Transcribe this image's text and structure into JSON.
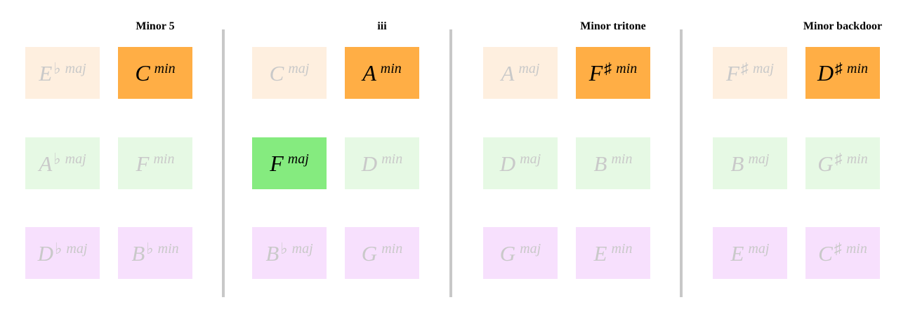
{
  "colors": {
    "orange": "#ffae45",
    "orange_faint": "#feefdf",
    "green": "#85eb7f",
    "green_faint": "#e6f9e4",
    "violet_faint": "#f7e0fd",
    "divider": "#c8c8c8",
    "text_active": "#000000",
    "text_faint": "#c9c9c9"
  },
  "panels": [
    {
      "title": "Minor 5",
      "rows": [
        [
          {
            "root": "E",
            "accidental": "♭",
            "quality": "maj",
            "color": "orange_faint",
            "active": false
          },
          {
            "root": "C",
            "accidental": "",
            "quality": "min",
            "color": "orange",
            "active": true
          }
        ],
        [
          {
            "root": "A",
            "accidental": "♭",
            "quality": "maj",
            "color": "green_faint",
            "active": false
          },
          {
            "root": "F",
            "accidental": "",
            "quality": "min",
            "color": "green_faint",
            "active": false
          }
        ],
        [
          {
            "root": "D",
            "accidental": "♭",
            "quality": "maj",
            "color": "violet_faint",
            "active": false
          },
          {
            "root": "B",
            "accidental": "♭",
            "quality": "min",
            "color": "violet_faint",
            "active": false
          }
        ]
      ]
    },
    {
      "title": "iii",
      "rows": [
        [
          {
            "root": "C",
            "accidental": "",
            "quality": "maj",
            "color": "orange_faint",
            "active": false
          },
          {
            "root": "A",
            "accidental": "",
            "quality": "min",
            "color": "orange",
            "active": true
          }
        ],
        [
          {
            "root": "F",
            "accidental": "",
            "quality": "maj",
            "color": "green",
            "active": true
          },
          {
            "root": "D",
            "accidental": "",
            "quality": "min",
            "color": "green_faint",
            "active": false
          }
        ],
        [
          {
            "root": "B",
            "accidental": "♭",
            "quality": "maj",
            "color": "violet_faint",
            "active": false
          },
          {
            "root": "G",
            "accidental": "",
            "quality": "min",
            "color": "violet_faint",
            "active": false
          }
        ]
      ]
    },
    {
      "title": "Minor tritone",
      "rows": [
        [
          {
            "root": "A",
            "accidental": "",
            "quality": "maj",
            "color": "orange_faint",
            "active": false
          },
          {
            "root": "F",
            "accidental": "♯",
            "quality": "min",
            "color": "orange",
            "active": true
          }
        ],
        [
          {
            "root": "D",
            "accidental": "",
            "quality": "maj",
            "color": "green_faint",
            "active": false
          },
          {
            "root": "B",
            "accidental": "",
            "quality": "min",
            "color": "green_faint",
            "active": false
          }
        ],
        [
          {
            "root": "G",
            "accidental": "",
            "quality": "maj",
            "color": "violet_faint",
            "active": false
          },
          {
            "root": "E",
            "accidental": "",
            "quality": "min",
            "color": "violet_faint",
            "active": false
          }
        ]
      ]
    },
    {
      "title": "Minor backdoor",
      "rows": [
        [
          {
            "root": "F",
            "accidental": "♯",
            "quality": "maj",
            "color": "orange_faint",
            "active": false
          },
          {
            "root": "D",
            "accidental": "♯",
            "quality": "min",
            "color": "orange",
            "active": true
          }
        ],
        [
          {
            "root": "B",
            "accidental": "",
            "quality": "maj",
            "color": "green_faint",
            "active": false
          },
          {
            "root": "G",
            "accidental": "♯",
            "quality": "min",
            "color": "green_faint",
            "active": false
          }
        ],
        [
          {
            "root": "E",
            "accidental": "",
            "quality": "maj",
            "color": "violet_faint",
            "active": false
          },
          {
            "root": "C",
            "accidental": "♯",
            "quality": "min",
            "color": "violet_faint",
            "active": false
          }
        ]
      ]
    }
  ]
}
